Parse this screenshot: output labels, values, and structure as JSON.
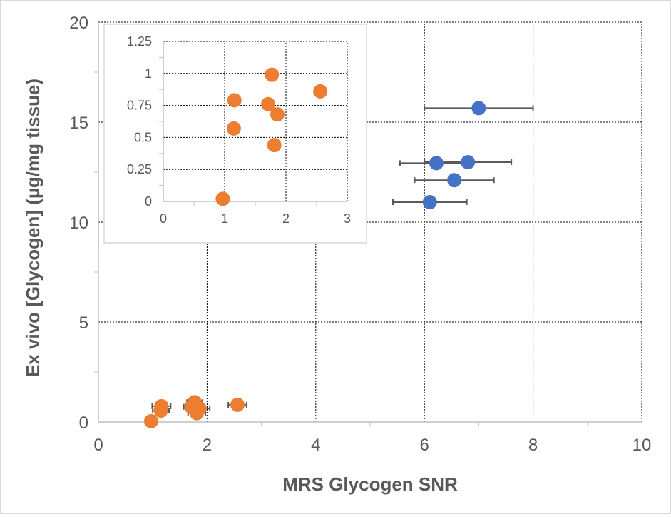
{
  "chart_data": [
    {
      "type": "scatter",
      "xlabel": "MRS Glycogen SNR",
      "ylabel": "Ex vivo [Glycogen] (µg/mg tissue)",
      "xlim": [
        0,
        10
      ],
      "ylim": [
        0,
        20
      ],
      "x_ticks": [
        "0",
        "2",
        "4",
        "6",
        "8",
        "10"
      ],
      "y_ticks": [
        "0",
        "5",
        "10",
        "15",
        "20"
      ],
      "grid": true,
      "legend": "none",
      "colors": {
        "orange": "#ED7D31",
        "blue": "#4472C4",
        "errorbar": "#595959",
        "grid": "#000000"
      },
      "series": [
        {
          "color": "#ED7D31",
          "points": [
            {
              "x": 0.97,
              "y": 0.04,
              "xerr": 0.0
            },
            {
              "x": 1.15,
              "y": 0.57,
              "xerr": 0.15
            },
            {
              "x": 1.16,
              "y": 0.79,
              "xerr": 0.17
            },
            {
              "x": 1.71,
              "y": 0.76,
              "xerr": 0.14
            },
            {
              "x": 1.77,
              "y": 0.99,
              "xerr": 0.14
            },
            {
              "x": 1.81,
              "y": 0.44,
              "xerr": 0.16
            },
            {
              "x": 1.86,
              "y": 0.68,
              "xerr": 0.19
            },
            {
              "x": 2.56,
              "y": 0.86,
              "xerr": 0.17
            }
          ]
        },
        {
          "color": "#4472C4",
          "points": [
            {
              "x": 6.1,
              "y": 11.0,
              "xerr": 0.68
            },
            {
              "x": 6.22,
              "y": 12.95,
              "xerr": 0.67
            },
            {
              "x": 6.55,
              "y": 12.1,
              "xerr": 0.73
            },
            {
              "x": 6.8,
              "y": 13.0,
              "xerr": 0.8
            },
            {
              "x": 7.0,
              "y": 15.7,
              "xerr": 1.0
            }
          ]
        }
      ]
    },
    {
      "type": "scatter",
      "xlabel": "",
      "ylabel": "",
      "xlim": [
        0,
        3
      ],
      "ylim": [
        0,
        1.25
      ],
      "x_ticks": [
        "0",
        "1",
        "2",
        "3"
      ],
      "y_ticks": [
        "0",
        "0.25",
        "0.5",
        "0.75",
        "1",
        "1.25"
      ],
      "grid": true,
      "legend": "none",
      "series": [
        {
          "color": "#ED7D31",
          "points": [
            {
              "x": 0.97,
              "y": 0.02
            },
            {
              "x": 1.15,
              "y": 0.57
            },
            {
              "x": 1.16,
              "y": 0.79
            },
            {
              "x": 1.71,
              "y": 0.76
            },
            {
              "x": 1.77,
              "y": 0.99
            },
            {
              "x": 1.81,
              "y": 0.44
            },
            {
              "x": 1.86,
              "y": 0.68
            },
            {
              "x": 2.56,
              "y": 0.86
            }
          ]
        }
      ]
    }
  ]
}
